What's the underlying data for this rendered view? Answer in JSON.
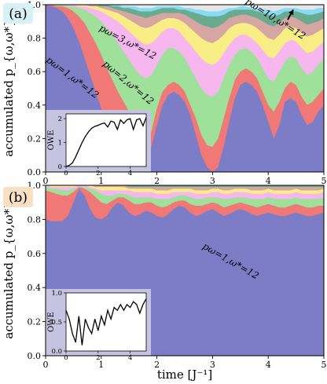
{
  "chart_data": [
    {
      "type": "area",
      "panel_label": "(a)",
      "panel_label_bg": "#d8f1f5",
      "xlabel": "time [J⁻¹]",
      "ylabel": "accumulated p_{ω,ω*}",
      "xlim": [
        0,
        5
      ],
      "ylim": [
        0,
        1
      ],
      "xticks": [
        "0",
        "1",
        "2",
        "3",
        "4",
        "5"
      ],
      "yticks": [
        "0.0",
        "0.2",
        "0.4",
        "0.6",
        "0.8",
        "1.0"
      ],
      "grid": false,
      "x": [
        0,
        0.1,
        0.2,
        0.3,
        0.4,
        0.5,
        0.6,
        0.7,
        0.8,
        0.9,
        1.0,
        1.1,
        1.2,
        1.3,
        1.4,
        1.5,
        1.6,
        1.7,
        1.8,
        1.9,
        2.0,
        2.1,
        2.2,
        2.3,
        2.4,
        2.5,
        2.6,
        2.7,
        2.8,
        2.9,
        3.0,
        3.1,
        3.2,
        3.3,
        3.4,
        3.5,
        3.6,
        3.7,
        3.8,
        3.9,
        4.0,
        4.1,
        4.2,
        4.3,
        4.4,
        4.5,
        4.6,
        4.7,
        4.8,
        4.9,
        5.0
      ],
      "stack_tops": [
        [
          1.0,
          0.99,
          0.98,
          0.96,
          0.92,
          0.86,
          0.78,
          0.68,
          0.58,
          0.48,
          0.38,
          0.29,
          0.22,
          0.15,
          0.1,
          0.05,
          0.03,
          0.03,
          0.06,
          0.15,
          0.28,
          0.4,
          0.46,
          0.48,
          0.46,
          0.42,
          0.34,
          0.22,
          0.1,
          0.03,
          0.0,
          0.03,
          0.15,
          0.3,
          0.44,
          0.52,
          0.54,
          0.52,
          0.48,
          0.4,
          0.3,
          0.2,
          0.28,
          0.42,
          0.44,
          0.42,
          0.34,
          0.28,
          0.3,
          0.36,
          0.4
        ],
        [
          1.0,
          1.0,
          0.99,
          0.99,
          0.98,
          0.96,
          0.93,
          0.89,
          0.83,
          0.77,
          0.7,
          0.62,
          0.55,
          0.48,
          0.42,
          0.36,
          0.3,
          0.24,
          0.2,
          0.24,
          0.38,
          0.48,
          0.52,
          0.54,
          0.52,
          0.48,
          0.4,
          0.32,
          0.22,
          0.16,
          0.15,
          0.2,
          0.32,
          0.44,
          0.55,
          0.6,
          0.62,
          0.6,
          0.56,
          0.48,
          0.4,
          0.36,
          0.42,
          0.5,
          0.54,
          0.52,
          0.45,
          0.4,
          0.42,
          0.46,
          0.5
        ],
        [
          1.0,
          1.0,
          1.0,
          1.0,
          0.99,
          0.99,
          0.98,
          0.97,
          0.95,
          0.93,
          0.9,
          0.86,
          0.82,
          0.77,
          0.72,
          0.67,
          0.62,
          0.58,
          0.56,
          0.58,
          0.64,
          0.7,
          0.74,
          0.74,
          0.72,
          0.68,
          0.62,
          0.56,
          0.5,
          0.46,
          0.45,
          0.48,
          0.56,
          0.64,
          0.7,
          0.73,
          0.74,
          0.72,
          0.68,
          0.62,
          0.56,
          0.54,
          0.6,
          0.66,
          0.69,
          0.68,
          0.62,
          0.58,
          0.6,
          0.64,
          0.68
        ],
        [
          1.0,
          1.0,
          1.0,
          1.0,
          1.0,
          1.0,
          0.99,
          0.99,
          0.98,
          0.97,
          0.96,
          0.94,
          0.92,
          0.9,
          0.87,
          0.84,
          0.81,
          0.78,
          0.76,
          0.77,
          0.8,
          0.84,
          0.86,
          0.86,
          0.84,
          0.8,
          0.76,
          0.72,
          0.68,
          0.65,
          0.64,
          0.66,
          0.71,
          0.76,
          0.8,
          0.82,
          0.82,
          0.8,
          0.77,
          0.73,
          0.69,
          0.68,
          0.72,
          0.77,
          0.79,
          0.78,
          0.74,
          0.71,
          0.72,
          0.75,
          0.78
        ],
        [
          1.0,
          1.0,
          1.0,
          1.0,
          1.0,
          1.0,
          1.0,
          1.0,
          0.99,
          0.99,
          0.98,
          0.97,
          0.96,
          0.95,
          0.93,
          0.91,
          0.89,
          0.87,
          0.86,
          0.87,
          0.89,
          0.91,
          0.92,
          0.92,
          0.91,
          0.89,
          0.86,
          0.83,
          0.8,
          0.78,
          0.77,
          0.79,
          0.82,
          0.86,
          0.88,
          0.89,
          0.89,
          0.88,
          0.86,
          0.83,
          0.8,
          0.79,
          0.82,
          0.86,
          0.87,
          0.86,
          0.83,
          0.81,
          0.82,
          0.84,
          0.86
        ],
        [
          1.0,
          1.0,
          1.0,
          1.0,
          1.0,
          1.0,
          1.0,
          1.0,
          1.0,
          1.0,
          0.99,
          0.99,
          0.98,
          0.97,
          0.96,
          0.95,
          0.94,
          0.93,
          0.92,
          0.93,
          0.94,
          0.95,
          0.95,
          0.95,
          0.95,
          0.94,
          0.92,
          0.9,
          0.88,
          0.87,
          0.86,
          0.87,
          0.89,
          0.92,
          0.93,
          0.94,
          0.94,
          0.93,
          0.92,
          0.9,
          0.88,
          0.87,
          0.89,
          0.92,
          0.93,
          0.92,
          0.9,
          0.88,
          0.89,
          0.9,
          0.92
        ],
        [
          1.0,
          1.0,
          1.0,
          1.0,
          1.0,
          1.0,
          1.0,
          1.0,
          1.0,
          1.0,
          1.0,
          1.0,
          0.99,
          0.99,
          0.98,
          0.98,
          0.97,
          0.96,
          0.96,
          0.96,
          0.97,
          0.98,
          0.98,
          0.98,
          0.97,
          0.97,
          0.96,
          0.95,
          0.94,
          0.93,
          0.93,
          0.93,
          0.94,
          0.96,
          0.97,
          0.97,
          0.97,
          0.97,
          0.96,
          0.95,
          0.94,
          0.93,
          0.94,
          0.96,
          0.96,
          0.96,
          0.95,
          0.94,
          0.94,
          0.95,
          0.96
        ],
        [
          1.0,
          1.0,
          1.0,
          1.0,
          1.0,
          1.0,
          1.0,
          1.0,
          1.0,
          1.0,
          1.0,
          1.0,
          1.0,
          1.0,
          0.99,
          0.99,
          0.99,
          0.98,
          0.98,
          0.98,
          0.99,
          0.99,
          0.99,
          0.99,
          0.99,
          0.98,
          0.98,
          0.97,
          0.97,
          0.96,
          0.96,
          0.96,
          0.97,
          0.98,
          0.98,
          0.99,
          0.99,
          0.98,
          0.98,
          0.97,
          0.97,
          0.96,
          0.97,
          0.98,
          0.98,
          0.98,
          0.97,
          0.97,
          0.97,
          0.98,
          0.98
        ],
        [
          1.0,
          1.0,
          1.0,
          1.0,
          1.0,
          1.0,
          1.0,
          1.0,
          1.0,
          1.0,
          1.0,
          1.0,
          1.0,
          1.0,
          1.0,
          1.0,
          1.0,
          0.99,
          0.99,
          0.99,
          1.0,
          1.0,
          1.0,
          1.0,
          1.0,
          0.99,
          0.99,
          0.99,
          0.99,
          0.98,
          0.98,
          0.98,
          0.99,
          0.99,
          0.99,
          1.0,
          1.0,
          0.99,
          0.99,
          0.99,
          0.98,
          0.98,
          0.98,
          0.99,
          0.99,
          0.99,
          0.99,
          0.98,
          0.98,
          0.99,
          0.99
        ]
      ],
      "annotations": [
        {
          "text": "pω=1,ω*=12",
          "x": 0.45,
          "y": 0.55,
          "angle": 37
        },
        {
          "text": "pω=2,ω*=12",
          "x": 1.45,
          "y": 0.52,
          "angle": 40
        },
        {
          "text": "pω=3,ω*=12",
          "x": 1.45,
          "y": 0.76,
          "angle": 28
        },
        {
          "text": "pω=10,ω*=12",
          "x": 4.1,
          "y": 0.9,
          "angle": 32
        }
      ],
      "arrow": {
        "from": [
          4.35,
          0.91
        ],
        "to": [
          4.45,
          0.97
        ]
      },
      "inset": {
        "ylabel": "OWE",
        "xticks": [
          "0",
          "2",
          "4"
        ],
        "yticks": [
          "0",
          "1",
          "2"
        ],
        "xlim": [
          0,
          5
        ],
        "ylim": [
          0,
          2.2
        ],
        "bg": "#c5c3e0",
        "x": [
          0,
          0.2,
          0.4,
          0.6,
          0.8,
          1.0,
          1.2,
          1.4,
          1.6,
          1.8,
          2.0,
          2.2,
          2.4,
          2.6,
          2.8,
          3.0,
          3.2,
          3.4,
          3.6,
          3.8,
          4.0,
          4.2,
          4.4,
          4.6,
          4.8,
          5.0
        ],
        "y": [
          0.0,
          0.05,
          0.15,
          0.4,
          0.7,
          1.0,
          1.25,
          1.45,
          1.6,
          1.68,
          1.72,
          1.78,
          1.82,
          1.65,
          1.9,
          1.85,
          1.55,
          1.95,
          1.8,
          1.95,
          2.0,
          1.55,
          1.95,
          2.0,
          1.7,
          2.05
        ]
      }
    },
    {
      "type": "area",
      "panel_label": "(b)",
      "panel_label_bg": "#fbdfc2",
      "xlabel": "time [J⁻¹]",
      "ylabel": "accumulated p_{ω,ω*}",
      "xlim": [
        0,
        5
      ],
      "ylim": [
        0,
        1
      ],
      "xticks": [
        "0",
        "1",
        "2",
        "3",
        "4",
        "5"
      ],
      "yticks": [
        "0.0",
        "0.2",
        "0.4",
        "0.6",
        "0.8",
        "1.0"
      ],
      "grid": false,
      "x": [
        0,
        0.1,
        0.2,
        0.3,
        0.4,
        0.5,
        0.6,
        0.7,
        0.8,
        0.9,
        1.0,
        1.1,
        1.2,
        1.3,
        1.4,
        1.5,
        1.6,
        1.7,
        1.8,
        1.9,
        2.0,
        2.1,
        2.2,
        2.3,
        2.4,
        2.5,
        2.6,
        2.7,
        2.8,
        2.9,
        3.0,
        3.1,
        3.2,
        3.3,
        3.4,
        3.5,
        3.6,
        3.7,
        3.8,
        3.9,
        4.0,
        4.1,
        4.2,
        4.3,
        4.4,
        4.5,
        4.6,
        4.7,
        4.8,
        4.9,
        5.0
      ],
      "stack_tops": [
        [
          0.8,
          0.79,
          0.79,
          0.79,
          0.82,
          0.9,
          0.98,
          0.94,
          0.86,
          0.81,
          0.8,
          0.82,
          0.87,
          0.9,
          0.88,
          0.84,
          0.82,
          0.83,
          0.85,
          0.84,
          0.82,
          0.81,
          0.83,
          0.86,
          0.88,
          0.87,
          0.84,
          0.82,
          0.83,
          0.85,
          0.86,
          0.84,
          0.82,
          0.83,
          0.85,
          0.86,
          0.85,
          0.83,
          0.82,
          0.83,
          0.84,
          0.83,
          0.82,
          0.82,
          0.83,
          0.84,
          0.83,
          0.82,
          0.82,
          0.83,
          0.84
        ],
        [
          0.97,
          0.96,
          0.95,
          0.94,
          0.94,
          0.96,
          0.99,
          0.98,
          0.96,
          0.93,
          0.9,
          0.89,
          0.91,
          0.93,
          0.93,
          0.91,
          0.89,
          0.89,
          0.9,
          0.9,
          0.88,
          0.87,
          0.88,
          0.9,
          0.91,
          0.91,
          0.89,
          0.88,
          0.88,
          0.89,
          0.9,
          0.89,
          0.87,
          0.88,
          0.89,
          0.9,
          0.89,
          0.88,
          0.87,
          0.88,
          0.89,
          0.88,
          0.87,
          0.87,
          0.88,
          0.89,
          0.88,
          0.87,
          0.87,
          0.88,
          0.88
        ],
        [
          0.99,
          0.98,
          0.98,
          0.97,
          0.97,
          0.98,
          0.99,
          0.99,
          0.98,
          0.97,
          0.95,
          0.94,
          0.94,
          0.95,
          0.95,
          0.94,
          0.93,
          0.93,
          0.93,
          0.93,
          0.92,
          0.92,
          0.92,
          0.93,
          0.94,
          0.94,
          0.93,
          0.92,
          0.92,
          0.93,
          0.93,
          0.93,
          0.92,
          0.92,
          0.93,
          0.93,
          0.93,
          0.92,
          0.92,
          0.92,
          0.93,
          0.92,
          0.92,
          0.92,
          0.92,
          0.93,
          0.92,
          0.92,
          0.92,
          0.92,
          0.93
        ],
        [
          1.0,
          0.99,
          0.99,
          0.99,
          0.99,
          0.99,
          1.0,
          1.0,
          0.99,
          0.98,
          0.97,
          0.97,
          0.97,
          0.97,
          0.97,
          0.97,
          0.96,
          0.96,
          0.96,
          0.96,
          0.95,
          0.95,
          0.95,
          0.96,
          0.96,
          0.96,
          0.96,
          0.95,
          0.95,
          0.95,
          0.96,
          0.96,
          0.95,
          0.95,
          0.96,
          0.96,
          0.96,
          0.95,
          0.95,
          0.95,
          0.96,
          0.95,
          0.95,
          0.95,
          0.95,
          0.96,
          0.95,
          0.95,
          0.95,
          0.95,
          0.96
        ],
        [
          1.0,
          1.0,
          1.0,
          1.0,
          1.0,
          1.0,
          1.0,
          1.0,
          1.0,
          0.99,
          0.99,
          0.99,
          0.99,
          0.99,
          0.99,
          0.98,
          0.98,
          0.98,
          0.98,
          0.98,
          0.97,
          0.97,
          0.97,
          0.98,
          0.98,
          0.98,
          0.98,
          0.97,
          0.97,
          0.97,
          0.98,
          0.98,
          0.97,
          0.97,
          0.98,
          0.98,
          0.98,
          0.97,
          0.97,
          0.97,
          0.98,
          0.97,
          0.97,
          0.97,
          0.97,
          0.98,
          0.97,
          0.97,
          0.97,
          0.97,
          0.98
        ],
        [
          1.0,
          1.0,
          1.0,
          1.0,
          1.0,
          1.0,
          1.0,
          1.0,
          1.0,
          1.0,
          1.0,
          1.0,
          1.0,
          1.0,
          1.0,
          0.99,
          0.99,
          0.99,
          0.99,
          0.99,
          0.99,
          0.99,
          0.99,
          0.99,
          0.99,
          0.99,
          0.99,
          0.99,
          0.99,
          0.99,
          0.99,
          0.99,
          0.99,
          0.99,
          0.99,
          0.99,
          0.99,
          0.99,
          0.99,
          0.99,
          0.99,
          0.99,
          0.99,
          0.99,
          0.99,
          0.99,
          0.99,
          0.99,
          0.99,
          0.99,
          0.99
        ]
      ],
      "annotations": [
        {
          "text": "pω=1,ω*=12",
          "x": 3.3,
          "y": 0.54,
          "angle": 30
        }
      ],
      "inset": {
        "ylabel": "OWE",
        "xticks": [
          "0",
          "2",
          "4"
        ],
        "yticks": [
          "0.0",
          "0.5",
          "1.0"
        ],
        "xlim": [
          0,
          5
        ],
        "ylim": [
          0,
          1
        ],
        "bg": "#c5c3e0",
        "x": [
          0,
          0.2,
          0.4,
          0.6,
          0.8,
          1.0,
          1.2,
          1.4,
          1.6,
          1.8,
          2.0,
          2.2,
          2.4,
          2.6,
          2.8,
          3.0,
          3.2,
          3.4,
          3.6,
          3.8,
          4.0,
          4.2,
          4.4,
          4.6,
          4.8,
          5.0
        ],
        "y": [
          0.7,
          0.55,
          0.3,
          0.15,
          0.6,
          0.1,
          0.55,
          0.4,
          0.3,
          0.55,
          0.35,
          0.6,
          0.45,
          0.7,
          0.55,
          0.75,
          0.7,
          0.8,
          0.7,
          0.8,
          0.75,
          0.85,
          0.8,
          0.65,
          0.8,
          0.9
        ]
      }
    }
  ],
  "colors": [
    "#7d7cc6",
    "#f07876",
    "#9fe09a",
    "#f5b7ee",
    "#f9ed85",
    "#d6a7a2",
    "#6aaa8e",
    "#86dbf5",
    "#e6e6e6"
  ]
}
